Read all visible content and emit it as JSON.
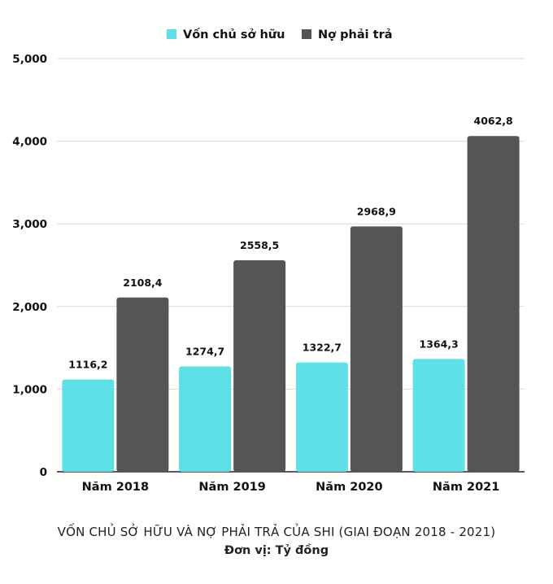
{
  "chart_data": {
    "type": "bar",
    "title": "VỐN CHỦ SỞ HỮU VÀ NỢ PHẢI TRẢ CỦA SHI (GIAI ĐOẠN 2018 - 2021)",
    "subtitle": "Đơn vị: Tỷ đồng",
    "categories": [
      "Năm 2018",
      "Năm 2019",
      "Năm 2020",
      "Năm 2021"
    ],
    "series": [
      {
        "name": "Vốn chủ sở hữu",
        "color": "#5ee0e6",
        "values": [
          1116.2,
          1274.7,
          1322.7,
          1364.3
        ],
        "labels": [
          "1116,2",
          "1274,7",
          "1322,7",
          "1364,3"
        ]
      },
      {
        "name": "Nợ phải trả",
        "color": "#555555",
        "values": [
          2108.4,
          2558.5,
          2968.9,
          4062.8
        ],
        "labels": [
          "2108,4",
          "2558,5",
          "2968,9",
          "4062,8"
        ]
      }
    ],
    "ylim": [
      0,
      5000
    ],
    "yticks": [
      0,
      1000,
      2000,
      3000,
      4000,
      5000
    ],
    "ytick_labels": [
      "0",
      "1,000",
      "2,000",
      "3,000",
      "4,000",
      "5,000"
    ],
    "xlabel": "",
    "ylabel": "",
    "grid": true,
    "legend_position": "top-center"
  }
}
